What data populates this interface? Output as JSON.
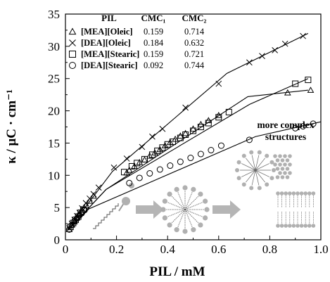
{
  "chart_data": {
    "type": "scatter",
    "xlabel": "PIL / mM",
    "ylabel": "κ / μC · cm⁻¹",
    "xlim": [
      0,
      1.0
    ],
    "ylim": [
      0,
      35
    ],
    "xticks": [
      "0",
      "0.2",
      "0.4",
      "0.6",
      "0.8",
      "1.0"
    ],
    "yticks": [
      "0",
      "5",
      "10",
      "15",
      "20",
      "25",
      "30",
      "35"
    ],
    "grid": false,
    "legend_placement": "top-left",
    "legend_headers": {
      "pil": "PIL",
      "cmc1": "CMC₁",
      "cmc2": "CMC₂"
    },
    "annotation": "more complex structures",
    "series": [
      {
        "name": "[MEA][Oleic]",
        "marker": "triangle",
        "cmc1": "0.159",
        "cmc2": "0.714",
        "points": [
          [
            0.015,
            1.6
          ],
          [
            0.025,
            2.3
          ],
          [
            0.035,
            2.8
          ],
          [
            0.045,
            3.4
          ],
          [
            0.055,
            4.0
          ],
          [
            0.065,
            4.6
          ],
          [
            0.08,
            5.3
          ],
          [
            0.095,
            6.0
          ],
          [
            0.11,
            6.8
          ],
          [
            0.24,
            10.4
          ],
          [
            0.25,
            10.8
          ],
          [
            0.27,
            11.4
          ],
          [
            0.29,
            12.0
          ],
          [
            0.31,
            12.4
          ],
          [
            0.33,
            13.0
          ],
          [
            0.35,
            13.5
          ],
          [
            0.37,
            14.0
          ],
          [
            0.39,
            14.6
          ],
          [
            0.41,
            15.1
          ],
          [
            0.43,
            15.6
          ],
          [
            0.45,
            16.1
          ],
          [
            0.47,
            16.5
          ],
          [
            0.5,
            17.2
          ],
          [
            0.53,
            17.9
          ],
          [
            0.56,
            18.5
          ],
          [
            0.6,
            19.3
          ],
          [
            0.87,
            22.8
          ],
          [
            0.96,
            23.2
          ]
        ],
        "fit": [
          [
            0.01,
            1.5
          ],
          [
            0.159,
            7.8
          ],
          [
            0.714,
            22.2
          ],
          [
            0.95,
            23.2
          ]
        ]
      },
      {
        "name": "[DEA][Oleic]",
        "marker": "cross",
        "cmc1": "0.184",
        "cmc2": "0.632",
        "points": [
          [
            0.015,
            1.8
          ],
          [
            0.025,
            2.5
          ],
          [
            0.035,
            3.1
          ],
          [
            0.045,
            3.7
          ],
          [
            0.055,
            4.2
          ],
          [
            0.065,
            4.9
          ],
          [
            0.08,
            5.7
          ],
          [
            0.095,
            6.4
          ],
          [
            0.11,
            7.1
          ],
          [
            0.13,
            8.1
          ],
          [
            0.19,
            11.2
          ],
          [
            0.24,
            12.6
          ],
          [
            0.3,
            14.4
          ],
          [
            0.34,
            16.0
          ],
          [
            0.38,
            17.2
          ],
          [
            0.47,
            20.5
          ],
          [
            0.6,
            24.2
          ],
          [
            0.72,
            27.5
          ],
          [
            0.77,
            28.5
          ],
          [
            0.82,
            29.4
          ],
          [
            0.86,
            30.4
          ],
          [
            0.93,
            31.6
          ]
        ],
        "fit": [
          [
            0.01,
            1.5
          ],
          [
            0.184,
            10.6
          ],
          [
            0.632,
            25.8
          ],
          [
            0.95,
            32.0
          ]
        ]
      },
      {
        "name": "[MEA][Stearic]",
        "marker": "square",
        "cmc1": "0.159",
        "cmc2": "0.721",
        "points": [
          [
            0.02,
            2.0
          ],
          [
            0.03,
            2.6
          ],
          [
            0.04,
            3.1
          ],
          [
            0.05,
            3.6
          ],
          [
            0.06,
            4.2
          ],
          [
            0.07,
            4.7
          ],
          [
            0.23,
            10.5
          ],
          [
            0.26,
            11.4
          ],
          [
            0.28,
            11.9
          ],
          [
            0.31,
            12.5
          ],
          [
            0.34,
            13.2
          ],
          [
            0.36,
            13.8
          ],
          [
            0.38,
            14.3
          ],
          [
            0.4,
            14.8
          ],
          [
            0.42,
            15.2
          ],
          [
            0.45,
            15.8
          ],
          [
            0.47,
            16.3
          ],
          [
            0.5,
            16.9
          ],
          [
            0.53,
            17.5
          ],
          [
            0.56,
            18.1
          ],
          [
            0.6,
            19.0
          ],
          [
            0.64,
            19.8
          ],
          [
            0.9,
            24.2
          ],
          [
            0.95,
            24.8
          ]
        ],
        "fit": [
          [
            0.01,
            1.5
          ],
          [
            0.159,
            7.8
          ],
          [
            0.721,
            21.0
          ],
          [
            0.95,
            25.0
          ]
        ]
      },
      {
        "name": "[DEA][Stearic]",
        "marker": "circle",
        "cmc1": "0.092",
        "cmc2": "0.744",
        "points": [
          [
            0.015,
            1.6
          ],
          [
            0.025,
            2.3
          ],
          [
            0.035,
            2.9
          ],
          [
            0.045,
            3.3
          ],
          [
            0.055,
            3.8
          ],
          [
            0.065,
            4.2
          ],
          [
            0.075,
            4.6
          ],
          [
            0.25,
            8.8
          ],
          [
            0.29,
            9.6
          ],
          [
            0.33,
            10.3
          ],
          [
            0.37,
            10.9
          ],
          [
            0.41,
            11.5
          ],
          [
            0.45,
            12.1
          ],
          [
            0.49,
            12.7
          ],
          [
            0.53,
            13.3
          ],
          [
            0.57,
            13.9
          ],
          [
            0.61,
            14.6
          ],
          [
            0.72,
            15.5
          ],
          [
            0.9,
            17.3
          ],
          [
            0.93,
            17.6
          ],
          [
            0.97,
            18.0
          ]
        ],
        "fit": [
          [
            0.01,
            1.5
          ],
          [
            0.092,
            4.8
          ],
          [
            0.744,
            16.0
          ],
          [
            1.0,
            18.3
          ]
        ]
      }
    ]
  }
}
